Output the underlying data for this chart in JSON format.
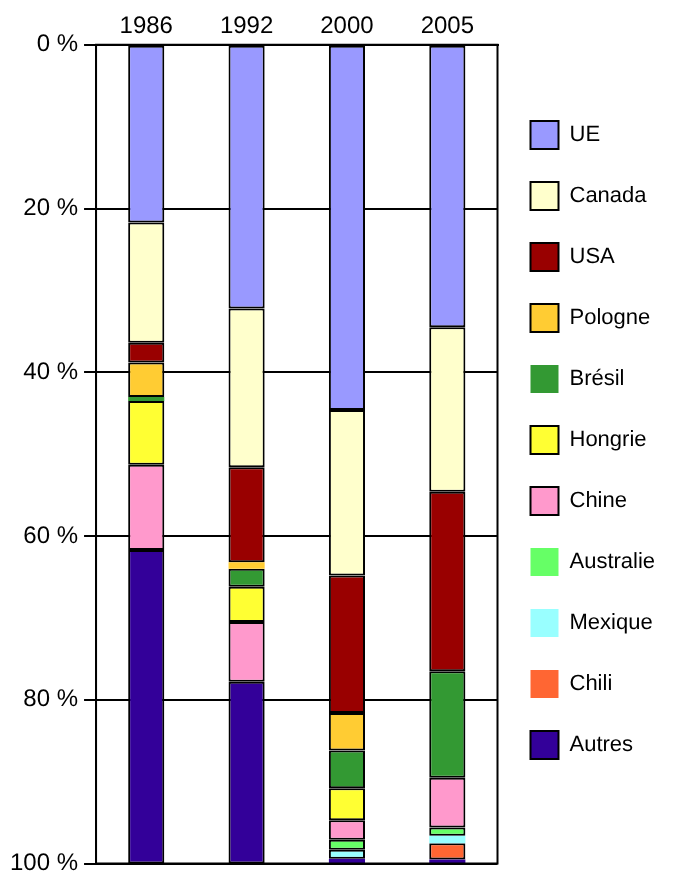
{
  "chart_data": {
    "type": "bar",
    "stacked": true,
    "categories": [
      "1986",
      "1992",
      "2000",
      "2005"
    ],
    "ylim": [
      100,
      0
    ],
    "yticks": [
      {
        "value": 0,
        "label": "0 %"
      },
      {
        "value": 20,
        "label": "20 %"
      },
      {
        "value": 40,
        "label": "40 %"
      },
      {
        "value": 60,
        "label": "60 %"
      },
      {
        "value": 80,
        "label": "80 %"
      },
      {
        "value": 100,
        "label": "100 %"
      }
    ],
    "grid": "y",
    "legend": "right",
    "series": [
      {
        "name": "UE",
        "color": "#9999ff",
        "values": [
          21.7,
          32.2,
          44.6,
          34.5
        ]
      },
      {
        "name": "Canada",
        "color": "#ffffcc",
        "values": [
          14.7,
          19.4,
          20.2,
          20.1
        ]
      },
      {
        "name": "USA",
        "color": "#990000",
        "values": [
          2.4,
          11.6,
          16.8,
          21.9
        ]
      },
      {
        "name": "Pologne",
        "color": "#ffcc33",
        "values": [
          4.2,
          0.8,
          4.6,
          0
        ]
      },
      {
        "name": "Brésil",
        "color": "#339933",
        "values": [
          0.5,
          2.2,
          4.6,
          13.0
        ]
      },
      {
        "name": "Hongrie",
        "color": "#ffff33",
        "values": [
          7.8,
          4.3,
          3.9,
          0
        ]
      },
      {
        "name": "Chine",
        "color": "#ff99cc",
        "values": [
          10.4,
          7.3,
          2.4,
          6.1
        ]
      },
      {
        "name": "Australie",
        "color": "#66ff66",
        "values": [
          0,
          0,
          1.2,
          1.0
        ]
      },
      {
        "name": "Mexique",
        "color": "#99ffff",
        "values": [
          0,
          0,
          1.1,
          0.9
        ]
      },
      {
        "name": "Chili",
        "color": "#ff6633",
        "values": [
          0,
          0,
          0,
          2.0
        ]
      },
      {
        "name": "Autres",
        "color": "#330099",
        "values": [
          38.3,
          22.2,
          0.6,
          0.5
        ]
      }
    ]
  }
}
